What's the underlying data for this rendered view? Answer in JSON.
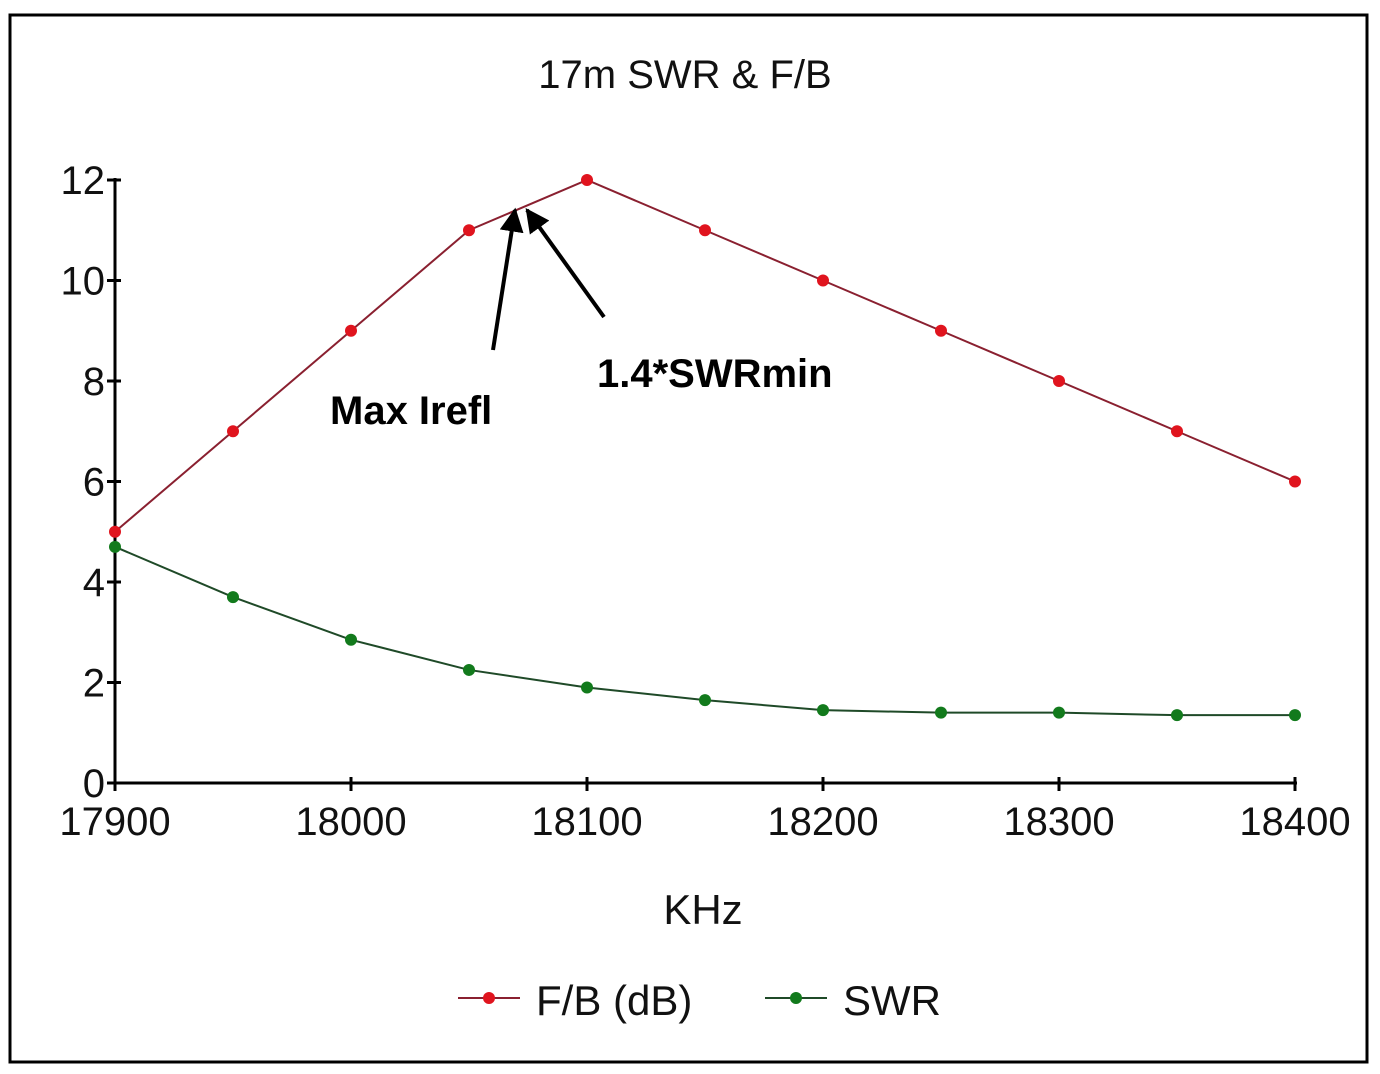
{
  "chart_data": {
    "type": "line",
    "title": "17m SWR & F/B",
    "xlabel": "KHz",
    "ylabel": "",
    "x": [
      17900,
      17950,
      18000,
      18050,
      18100,
      18150,
      18200,
      18250,
      18300,
      18350,
      18400
    ],
    "xlim": [
      17900,
      18400
    ],
    "ylim": [
      0,
      12
    ],
    "xticks": [
      "17900",
      "18000",
      "18100",
      "18200",
      "18300",
      "18400"
    ],
    "yticks": [
      "0",
      "2",
      "4",
      "6",
      "8",
      "10",
      "12"
    ],
    "grid": false,
    "legend_position": "bottom",
    "series": [
      {
        "name": "F/B (dB)",
        "color": "#e0141e",
        "values": [
          5,
          7,
          9,
          11,
          12,
          11,
          10,
          9,
          8,
          7,
          6
        ]
      },
      {
        "name": "SWR",
        "color": "#127a1c",
        "values": [
          4.7,
          3.7,
          2.85,
          2.25,
          1.9,
          1.65,
          1.45,
          1.4,
          1.4,
          1.35,
          1.35
        ]
      }
    ],
    "annotations": [
      {
        "text": "Max Irefl",
        "points_to": [
          18070,
          11.5
        ]
      },
      {
        "text": "1.4*SWRmin",
        "points_to": [
          18073,
          11.5
        ]
      }
    ]
  }
}
